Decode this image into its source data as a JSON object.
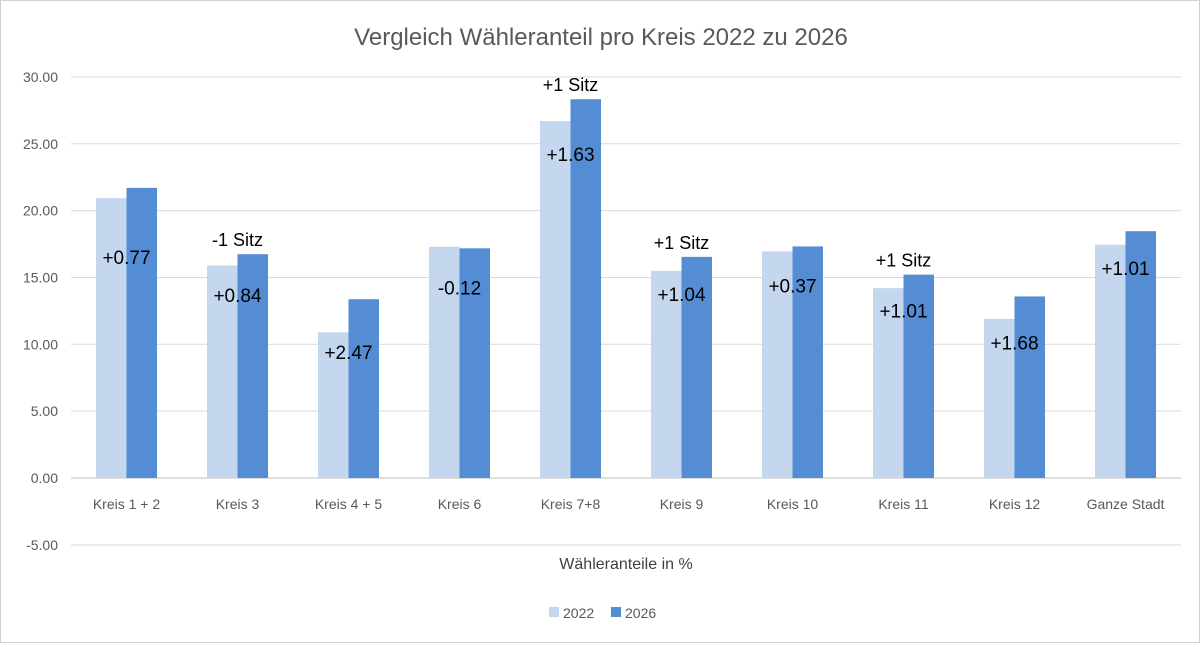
{
  "chart_data": {
    "type": "bar",
    "title": "Vergleich Wähleranteil pro Kreis 2022 zu 2026",
    "xlabel": "Wähleranteile in %",
    "ylabel": "",
    "ylim": [
      -5,
      30
    ],
    "yticks": [
      "-5.00",
      "0.00",
      "5.00",
      "10.00",
      "15.00",
      "20.00",
      "25.00",
      "30.00"
    ],
    "grid": true,
    "legend_placement": "bottom",
    "categories": [
      "Kreis 1 + 2",
      "Kreis 3",
      "Kreis 4 + 5",
      "Kreis 6",
      "Kreis 7+8",
      "Kreis 9",
      "Kreis 10",
      "Kreis 11",
      "Kreis 12",
      "Ganze Stadt"
    ],
    "series": [
      {
        "name": "2022",
        "color": "#c5d7ef",
        "values": [
          20.93,
          15.9,
          10.9,
          17.3,
          26.7,
          15.5,
          16.95,
          14.2,
          11.9,
          17.45
        ]
      },
      {
        "name": "2026",
        "color": "#548dd4",
        "values": [
          21.7,
          16.74,
          13.37,
          17.18,
          28.33,
          16.54,
          17.32,
          15.21,
          13.58,
          18.46
        ]
      }
    ],
    "delta_labels": [
      "+0.77",
      "+0.84",
      "+2.47",
      "-0.12",
      "+1.63",
      "+1.04",
      "+0.37",
      "+1.01",
      "+1.68",
      "+1.01"
    ],
    "seat_labels": [
      "",
      "-1 Sitz",
      "",
      "",
      "+1 Sitz",
      "+1 Sitz",
      "",
      "+1 Sitz",
      "",
      ""
    ]
  }
}
